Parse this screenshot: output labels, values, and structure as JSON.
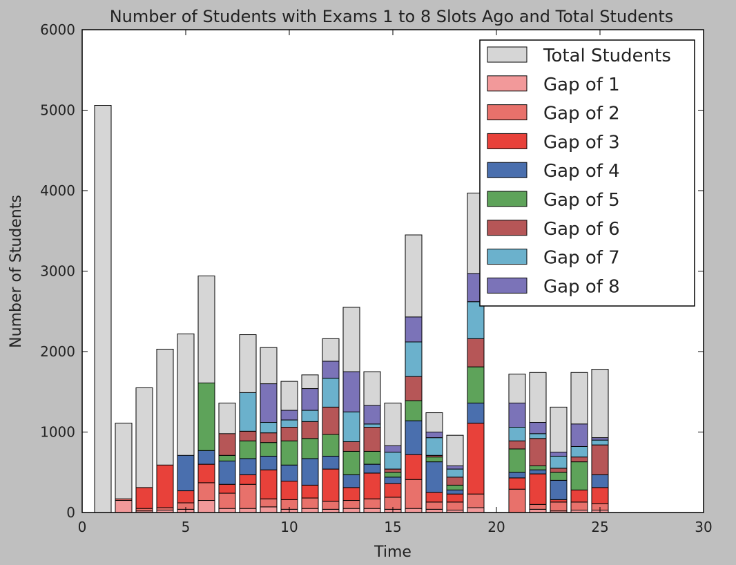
{
  "chart_data": {
    "type": "bar",
    "title": "Number of Students with Exams 1 to 8 Slots Ago and Total Students",
    "xlabel": "Time",
    "ylabel": "Number of Students",
    "xlim": [
      0,
      30
    ],
    "ylim": [
      0,
      6000
    ],
    "xticks": [
      0,
      5,
      10,
      15,
      20,
      25,
      30
    ],
    "yticks": [
      0,
      1000,
      2000,
      3000,
      4000,
      5000,
      6000
    ],
    "legend_position": "top-right",
    "grid": false,
    "x": [
      1,
      2,
      3,
      4,
      5,
      6,
      7,
      8,
      9,
      10,
      11,
      12,
      13,
      14,
      15,
      16,
      17,
      18,
      19,
      21,
      22,
      23,
      24,
      25
    ],
    "series": [
      {
        "name": "Total Students",
        "color": "#d6d6d6",
        "values": [
          5060,
          1110,
          1550,
          2030,
          2220,
          2940,
          1360,
          2210,
          2050,
          1630,
          1710,
          2160,
          2550,
          1750,
          1360,
          3450,
          1240,
          960,
          3970,
          1720,
          1740,
          1310,
          1740,
          1780
        ]
      },
      {
        "name": "Gap of 1",
        "color": "#f2999a",
        "values": [
          0,
          150,
          20,
          30,
          40,
          150,
          50,
          50,
          70,
          40,
          50,
          40,
          50,
          50,
          40,
          50,
          40,
          30,
          60,
          0,
          40,
          20,
          30,
          30
        ]
      },
      {
        "name": "Gap of 2",
        "color": "#e8716b",
        "values": [
          0,
          20,
          30,
          30,
          80,
          220,
          190,
          300,
          100,
          120,
          130,
          100,
          100,
          120,
          150,
          360,
          90,
          100,
          170,
          290,
          60,
          110,
          100,
          80
        ]
      },
      {
        "name": "Gap of 3",
        "color": "#e8413a",
        "values": [
          0,
          0,
          260,
          530,
          150,
          230,
          110,
          120,
          360,
          230,
          160,
          400,
          160,
          320,
          170,
          310,
          120,
          100,
          880,
          140,
          380,
          30,
          150,
          200
        ]
      },
      {
        "name": "Gap of 4",
        "color": "#4a6fae",
        "values": [
          0,
          0,
          0,
          0,
          440,
          170,
          290,
          200,
          170,
          200,
          330,
          160,
          160,
          110,
          80,
          420,
          380,
          50,
          250,
          70,
          50,
          240,
          0,
          160
        ]
      },
      {
        "name": "Gap of 5",
        "color": "#5ea35a",
        "values": [
          0,
          0,
          0,
          0,
          0,
          840,
          70,
          220,
          170,
          300,
          250,
          270,
          290,
          160,
          60,
          250,
          60,
          60,
          450,
          290,
          50,
          100,
          350,
          0
        ]
      },
      {
        "name": "Gap of 6",
        "color": "#b65657",
        "values": [
          0,
          0,
          0,
          0,
          0,
          0,
          270,
          120,
          120,
          170,
          210,
          340,
          120,
          300,
          40,
          300,
          20,
          100,
          350,
          100,
          340,
          50,
          60,
          370
        ]
      },
      {
        "name": "Gap of 7",
        "color": "#6bb1cc",
        "values": [
          0,
          0,
          0,
          0,
          0,
          0,
          0,
          480,
          130,
          90,
          140,
          360,
          370,
          40,
          210,
          430,
          220,
          100,
          460,
          170,
          60,
          150,
          130,
          60
        ]
      },
      {
        "name": "Gap of 8",
        "color": "#7b73b8",
        "values": [
          0,
          0,
          0,
          0,
          0,
          0,
          0,
          0,
          480,
          120,
          270,
          210,
          500,
          230,
          80,
          310,
          70,
          40,
          350,
          300,
          140,
          50,
          280,
          30
        ]
      }
    ]
  }
}
